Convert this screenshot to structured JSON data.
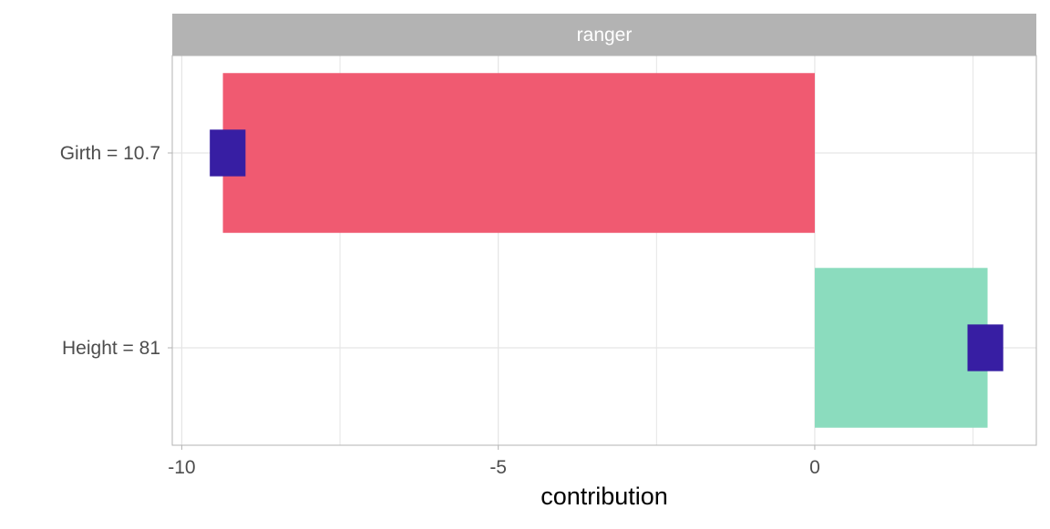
{
  "chart_data": {
    "type": "bar",
    "orientation": "horizontal",
    "facet_label": "ranger",
    "xlabel": "contribution",
    "ylabel": "",
    "xlim": [
      -10.15,
      3.5
    ],
    "x_ticks": [
      -10,
      -5,
      0
    ],
    "x_tick_labels": [
      "-10",
      "-5",
      "0"
    ],
    "x_minor_grid": [
      -7.5,
      -2.5,
      2.5
    ],
    "grid": true,
    "legend": "none",
    "categories": [
      "Girth = 10.7",
      "Height = 81"
    ],
    "values": [
      -9.35,
      2.73
    ],
    "boxplot_ranges": [
      [
        -9.55,
        -9.0
      ],
      [
        2.42,
        2.97
      ]
    ],
    "colors": {
      "negative": "#F05A71",
      "positive": "#8BDCBE",
      "boxplot": "#371EA3",
      "strip": "#B3B3B3",
      "strip_text": "#FFFFFF",
      "panel_border": "#B3B3B3",
      "grid": "#E5E5E5",
      "axis_text": "#4D4D4D"
    }
  }
}
